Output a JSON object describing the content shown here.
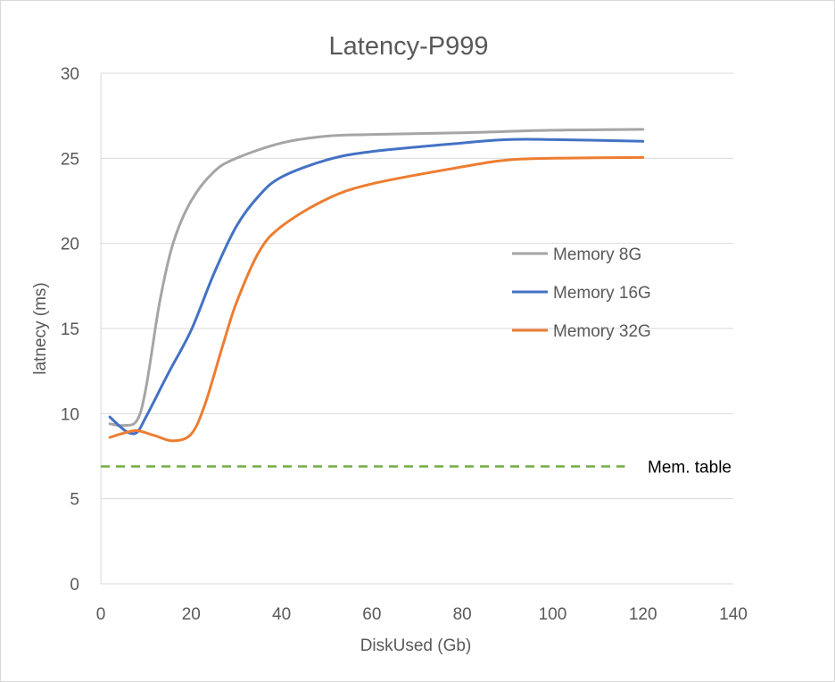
{
  "chart_data": {
    "type": "line",
    "title": "Latency-P999",
    "xlabel": "DiskUsed (Gb)",
    "ylabel": "latnecy (ms)",
    "xlim": [
      0,
      140
    ],
    "ylim": [
      0,
      30
    ],
    "x_ticks": [
      0,
      20,
      40,
      60,
      80,
      100,
      120,
      140
    ],
    "y_ticks": [
      0,
      5,
      10,
      15,
      20,
      25,
      30
    ],
    "grid": "horizontal",
    "legend_position": "right",
    "series": [
      {
        "name": "Memory 8G",
        "color": "#a5a5a5",
        "points": [
          [
            2,
            9.4
          ],
          [
            5,
            9.3
          ],
          [
            8,
            9.6
          ],
          [
            10,
            11.5
          ],
          [
            13,
            16.5
          ],
          [
            16,
            20.0
          ],
          [
            20,
            22.5
          ],
          [
            25,
            24.2
          ],
          [
            30,
            25.0
          ],
          [
            40,
            25.9
          ],
          [
            50,
            26.3
          ],
          [
            60,
            26.4
          ],
          [
            80,
            26.5
          ],
          [
            100,
            26.65
          ],
          [
            120,
            26.7
          ]
        ]
      },
      {
        "name": "Memory 16G",
        "color": "#4472c4",
        "points": [
          [
            2,
            9.8
          ],
          [
            4,
            9.3
          ],
          [
            6,
            8.9
          ],
          [
            8,
            8.9
          ],
          [
            10,
            9.8
          ],
          [
            15,
            12.4
          ],
          [
            20,
            14.9
          ],
          [
            25,
            18.2
          ],
          [
            30,
            21.0
          ],
          [
            35,
            22.8
          ],
          [
            40,
            23.9
          ],
          [
            50,
            24.9
          ],
          [
            60,
            25.4
          ],
          [
            80,
            25.9
          ],
          [
            90,
            26.1
          ],
          [
            100,
            26.1
          ],
          [
            120,
            26.0
          ]
        ]
      },
      {
        "name": "Memory 32G",
        "color": "#ed7d31",
        "points": [
          [
            2,
            8.6
          ],
          [
            5,
            8.85
          ],
          [
            8,
            9.0
          ],
          [
            12,
            8.7
          ],
          [
            16,
            8.4
          ],
          [
            20,
            8.8
          ],
          [
            23,
            10.5
          ],
          [
            27,
            14.0
          ],
          [
            30,
            16.5
          ],
          [
            35,
            19.5
          ],
          [
            40,
            21.0
          ],
          [
            50,
            22.6
          ],
          [
            60,
            23.5
          ],
          [
            80,
            24.5
          ],
          [
            90,
            24.9
          ],
          [
            100,
            25.0
          ],
          [
            120,
            25.05
          ]
        ]
      }
    ],
    "reference_lines": [
      {
        "label": "Mem. table",
        "y": 6.9,
        "x_range": [
          0,
          116
        ],
        "color": "#70ad47",
        "style": "dashed"
      }
    ]
  }
}
